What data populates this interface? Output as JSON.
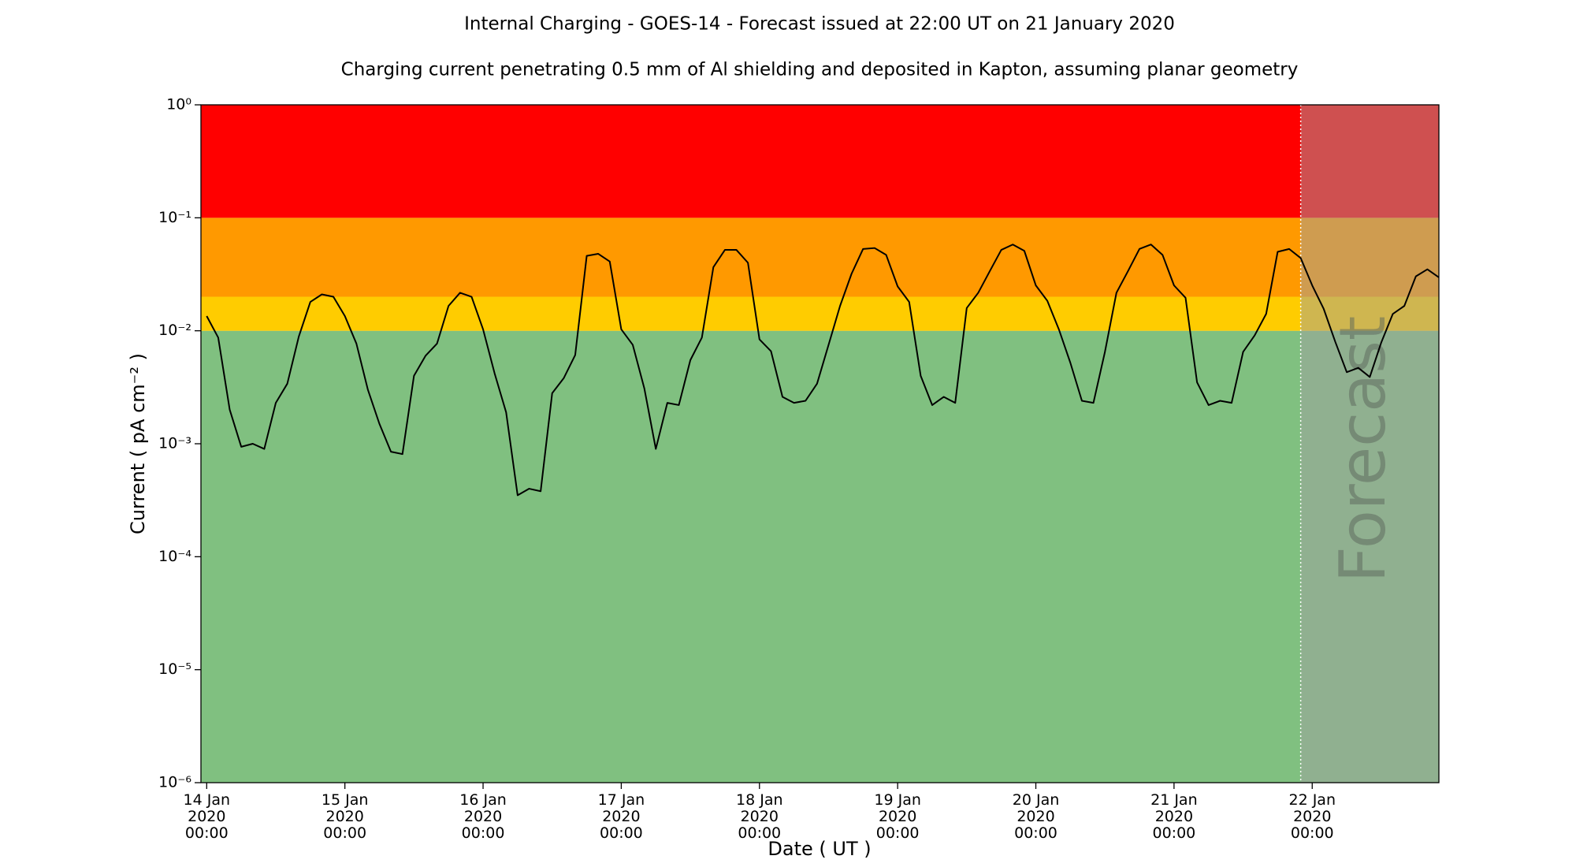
{
  "chart_data": {
    "type": "line",
    "title": "Internal Charging - GOES-14 - Forecast issued at 22:00 UT on 21 January 2020",
    "subtitle": "Charging current penetrating 0.5 mm of Al shielding and deposited in Kapton, assuming planar geometry",
    "x_label": "Date ( UT )",
    "y_label": "Current ( pA cm⁻² )",
    "log_y": true,
    "forecast_start": "2020-01-21 22:00",
    "forecast_label": "Forecast",
    "forecast_color": "#a0a0a0",
    "bands": [
      {
        "lower": 1e-06,
        "upper": 0.01,
        "color": "#80c080"
      },
      {
        "lower": 0.01,
        "upper": 0.02,
        "color": "#ffcc00"
      },
      {
        "lower": 0.02,
        "upper": 0.1,
        "color": "#ff9900"
      },
      {
        "lower": 0.1,
        "upper": 1,
        "color": "#ff0000"
      }
    ],
    "xlim": [
      "2020-01-13 23:00",
      "2020-01-22 22:00"
    ],
    "ylim": [
      1e-06,
      1
    ],
    "xticks": [
      {
        "value": "2020-01-14 00:00",
        "label": "14 Jan\n2020\n00:00"
      },
      {
        "value": "2020-01-15 00:00",
        "label": "15 Jan\n2020\n00:00"
      },
      {
        "value": "2020-01-16 00:00",
        "label": "16 Jan\n2020\n00:00"
      },
      {
        "value": "2020-01-17 00:00",
        "label": "17 Jan\n2020\n00:00"
      },
      {
        "value": "2020-01-18 00:00",
        "label": "18 Jan\n2020\n00:00"
      },
      {
        "value": "2020-01-19 00:00",
        "label": "19 Jan\n2020\n00:00"
      },
      {
        "value": "2020-01-20 00:00",
        "label": "20 Jan\n2020\n00:00"
      },
      {
        "value": "2020-01-21 00:00",
        "label": "21 Jan\n2020\n00:00"
      },
      {
        "value": "2020-01-22 00:00",
        "label": "22 Jan\n2020\n00:00"
      }
    ],
    "yticks": [
      {
        "value": 1e-06,
        "label": "10⁻⁶"
      },
      {
        "value": 1e-05,
        "label": "10⁻⁵"
      },
      {
        "value": 0.0001,
        "label": "10⁻⁴"
      },
      {
        "value": 0.001,
        "label": "10⁻³"
      },
      {
        "value": 0.01,
        "label": "10⁻²"
      },
      {
        "value": 0.1,
        "label": "10⁻¹"
      },
      {
        "value": 1,
        "label": "10⁰"
      }
    ],
    "x": [
      "2020-01-14 00:00",
      "2020-01-14 02:00",
      "2020-01-14 04:00",
      "2020-01-14 06:00",
      "2020-01-14 08:00",
      "2020-01-14 10:00",
      "2020-01-14 12:00",
      "2020-01-14 14:00",
      "2020-01-14 16:00",
      "2020-01-14 18:00",
      "2020-01-14 20:00",
      "2020-01-14 22:00",
      "2020-01-15 00:00",
      "2020-01-15 02:00",
      "2020-01-15 04:00",
      "2020-01-15 06:00",
      "2020-01-15 08:00",
      "2020-01-15 10:00",
      "2020-01-15 12:00",
      "2020-01-15 14:00",
      "2020-01-15 16:00",
      "2020-01-15 18:00",
      "2020-01-15 20:00",
      "2020-01-15 22:00",
      "2020-01-16 00:00",
      "2020-01-16 02:00",
      "2020-01-16 04:00",
      "2020-01-16 06:00",
      "2020-01-16 08:00",
      "2020-01-16 10:00",
      "2020-01-16 12:00",
      "2020-01-16 14:00",
      "2020-01-16 16:00",
      "2020-01-16 18:00",
      "2020-01-16 20:00",
      "2020-01-16 22:00",
      "2020-01-17 00:00",
      "2020-01-17 02:00",
      "2020-01-17 04:00",
      "2020-01-17 06:00",
      "2020-01-17 08:00",
      "2020-01-17 10:00",
      "2020-01-17 12:00",
      "2020-01-17 14:00",
      "2020-01-17 16:00",
      "2020-01-17 18:00",
      "2020-01-17 20:00",
      "2020-01-17 22:00",
      "2020-01-18 00:00",
      "2020-01-18 02:00",
      "2020-01-18 04:00",
      "2020-01-18 06:00",
      "2020-01-18 08:00",
      "2020-01-18 10:00",
      "2020-01-18 12:00",
      "2020-01-18 14:00",
      "2020-01-18 16:00",
      "2020-01-18 18:00",
      "2020-01-18 20:00",
      "2020-01-18 22:00",
      "2020-01-19 00:00",
      "2020-01-19 02:00",
      "2020-01-19 04:00",
      "2020-01-19 06:00",
      "2020-01-19 08:00",
      "2020-01-19 10:00",
      "2020-01-19 12:00",
      "2020-01-19 14:00",
      "2020-01-19 16:00",
      "2020-01-19 18:00",
      "2020-01-19 20:00",
      "2020-01-19 22:00",
      "2020-01-20 00:00",
      "2020-01-20 02:00",
      "2020-01-20 04:00",
      "2020-01-20 06:00",
      "2020-01-20 08:00",
      "2020-01-20 10:00",
      "2020-01-20 12:00",
      "2020-01-20 14:00",
      "2020-01-20 16:00",
      "2020-01-20 18:00",
      "2020-01-20 20:00",
      "2020-01-20 22:00",
      "2020-01-21 00:00",
      "2020-01-21 02:00",
      "2020-01-21 04:00",
      "2020-01-21 06:00",
      "2020-01-21 08:00",
      "2020-01-21 10:00",
      "2020-01-21 12:00",
      "2020-01-21 14:00",
      "2020-01-21 16:00",
      "2020-01-21 18:00",
      "2020-01-21 20:00",
      "2020-01-21 22:00",
      "2020-01-22 00:00",
      "2020-01-22 02:00",
      "2020-01-22 04:00",
      "2020-01-22 06:00",
      "2020-01-22 08:00",
      "2020-01-22 10:00",
      "2020-01-22 12:00",
      "2020-01-22 14:00",
      "2020-01-22 16:00",
      "2020-01-22 18:00",
      "2020-01-22 20:00",
      "2020-01-22 22:00"
    ],
    "series": [
      {
        "name": "Charging current",
        "color": "#000000",
        "values": [
          0.0135,
          0.0087,
          0.002,
          0.00094,
          0.001,
          0.0009,
          0.0023,
          0.0034,
          0.0089,
          0.018,
          0.021,
          0.02,
          0.0135,
          0.0077,
          0.003,
          0.0015,
          0.00085,
          0.00081,
          0.004,
          0.006,
          0.0077,
          0.0166,
          0.0217,
          0.02,
          0.0103,
          0.0042,
          0.0019,
          0.00035,
          0.0004,
          0.00038,
          0.0028,
          0.0038,
          0.0061,
          0.046,
          0.048,
          0.041,
          0.0103,
          0.0075,
          0.0031,
          0.0009,
          0.0023,
          0.0022,
          0.0055,
          0.0087,
          0.0366,
          0.052,
          0.052,
          0.04,
          0.0084,
          0.0066,
          0.0026,
          0.0023,
          0.0024,
          0.0034,
          0.0075,
          0.0166,
          0.032,
          0.053,
          0.054,
          0.047,
          0.0247,
          0.018,
          0.004,
          0.0022,
          0.0026,
          0.0023,
          0.0159,
          0.0217,
          0.0337,
          0.052,
          0.058,
          0.051,
          0.0252,
          0.0184,
          0.0103,
          0.0052,
          0.0024,
          0.0023,
          0.0065,
          0.0217,
          0.0337,
          0.053,
          0.058,
          0.047,
          0.0252,
          0.0196,
          0.0035,
          0.0022,
          0.0024,
          0.0023,
          0.0065,
          0.0091,
          0.0141,
          0.05,
          0.053,
          0.044,
          0.0252,
          0.0156,
          0.008,
          0.0043,
          0.0047,
          0.0039,
          0.0079,
          0.0141,
          0.0166,
          0.0303,
          0.035,
          0.0297
        ]
      }
    ]
  }
}
